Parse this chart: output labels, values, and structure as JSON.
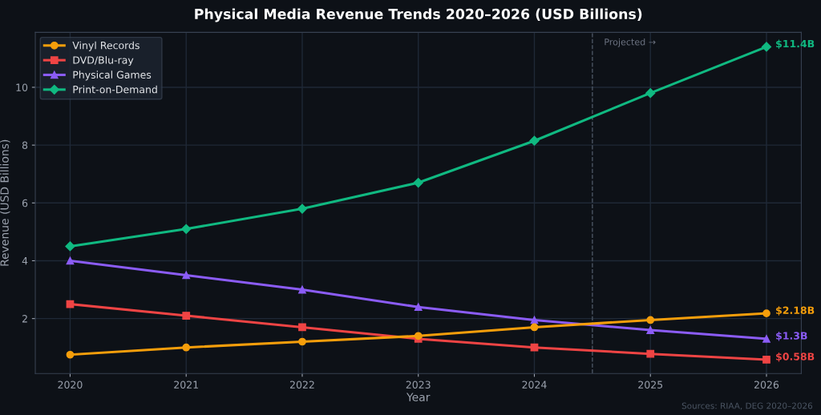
{
  "chart_data": {
    "type": "line",
    "title": "Physical Media Revenue Trends 2020–2026 (USD Billions)",
    "xlabel": "Year",
    "ylabel": "Revenue (USD Billions)",
    "x": [
      2020,
      2021,
      2022,
      2023,
      2024,
      2025,
      2026
    ],
    "series": [
      {
        "name": "Vinyl Records",
        "color": "#f59e0b",
        "marker": "circle",
        "values": [
          0.75,
          1.0,
          1.2,
          1.4,
          1.7,
          1.95,
          2.18
        ],
        "value_labels": [
          null,
          null,
          null,
          null,
          null,
          null,
          "$2.18B"
        ]
      },
      {
        "name": "DVD/Blu-ray",
        "color": "#ef4444",
        "marker": "square",
        "values": [
          2.5,
          2.1,
          1.7,
          1.3,
          1.0,
          0.78,
          0.58
        ],
        "value_labels": [
          null,
          null,
          null,
          null,
          null,
          null,
          "$0.58B"
        ]
      },
      {
        "name": "Physical Games",
        "color": "#8b5cf6",
        "marker": "triangle",
        "values": [
          4.0,
          3.5,
          3.0,
          2.4,
          1.95,
          1.6,
          1.3
        ],
        "value_labels": [
          null,
          null,
          null,
          null,
          null,
          null,
          "$1.3B"
        ]
      },
      {
        "name": "Print-on-Demand",
        "color": "#10b981",
        "marker": "diamond",
        "values": [
          4.5,
          5.1,
          5.8,
          6.7,
          8.15,
          9.8,
          11.4
        ],
        "value_labels": [
          null,
          null,
          null,
          null,
          null,
          null,
          "$11.4B"
        ]
      }
    ],
    "xlim": [
      2019.7,
      2026.3
    ],
    "xticks": [
      2020,
      2021,
      2022,
      2023,
      2024,
      2025,
      2026
    ],
    "ylim": [
      0.1,
      11.9
    ],
    "yticks": [
      2,
      4,
      6,
      8,
      10
    ],
    "ref_lines": [
      {
        "axis": "x",
        "value": 2024.5,
        "label": "Projected →",
        "color": "#4b5563",
        "line_style": "dashed"
      }
    ],
    "annotations": [
      "Sources: RIAA, DEG 2020–2026"
    ],
    "grid": true,
    "legend": "top left",
    "line_style": "solid"
  }
}
